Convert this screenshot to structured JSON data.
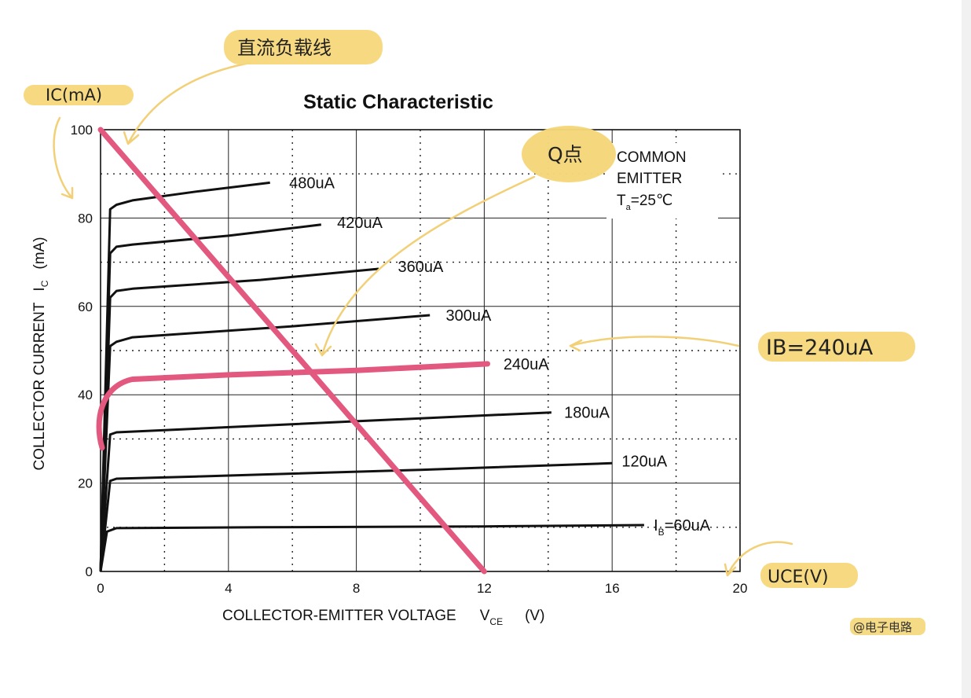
{
  "chart_data": {
    "type": "line",
    "title": "Static Characteristic",
    "ylabel_main": "COLLECTOR CURRENT",
    "ylabel_sym": "I",
    "ylabel_sub": "C",
    "ylabel_unit": "(mA)",
    "xlabel_main": "COLLECTOR-EMITTER VOLTAGE",
    "xlabel_sym": "V",
    "xlabel_sub": "CE",
    "xlabel_unit": "(V)",
    "x_ticks": [
      "0",
      "4",
      "8",
      "12",
      "16",
      "20"
    ],
    "y_ticks": [
      "0",
      "20",
      "40",
      "60",
      "80",
      "100"
    ],
    "xlim": [
      0,
      20
    ],
    "ylim": [
      0,
      100
    ],
    "grid": true,
    "info_line1": "COMMON",
    "info_line2": "EMITTER",
    "info_temp_sym": "T",
    "info_temp_sub": "a",
    "info_temp_val": "=25℃",
    "series": [
      {
        "name": "480uA",
        "label_x": 5.9,
        "label_y": 88,
        "points": [
          [
            0,
            0
          ],
          [
            0.3,
            82
          ],
          [
            0.5,
            83
          ],
          [
            1,
            84
          ],
          [
            3,
            86
          ],
          [
            5.3,
            88
          ]
        ]
      },
      {
        "name": "420uA",
        "label_x": 7.4,
        "label_y": 79,
        "points": [
          [
            0,
            0
          ],
          [
            0.3,
            72
          ],
          [
            0.5,
            73.5
          ],
          [
            1,
            74
          ],
          [
            4,
            76
          ],
          [
            6.9,
            78.5
          ]
        ]
      },
      {
        "name": "360uA",
        "label_x": 9.3,
        "label_y": 69,
        "points": [
          [
            0,
            0
          ],
          [
            0.3,
            62
          ],
          [
            0.5,
            63.5
          ],
          [
            1,
            64
          ],
          [
            5,
            66
          ],
          [
            8.7,
            68.5
          ]
        ]
      },
      {
        "name": "300uA",
        "label_x": 10.8,
        "label_y": 58,
        "points": [
          [
            0,
            0
          ],
          [
            0.3,
            51
          ],
          [
            0.5,
            52
          ],
          [
            1,
            53
          ],
          [
            6,
            55.5
          ],
          [
            10.3,
            58
          ]
        ]
      },
      {
        "name": "240uA",
        "label_x": 12.6,
        "label_y": 47,
        "points": [
          [
            0,
            0
          ],
          [
            0.3,
            40
          ],
          [
            0.5,
            41.5
          ],
          [
            1,
            43.5
          ],
          [
            4,
            44.5
          ],
          [
            8,
            45.5
          ],
          [
            12.1,
            47
          ]
        ]
      },
      {
        "name": "180uA",
        "label_x": 14.5,
        "label_y": 36,
        "points": [
          [
            0,
            0
          ],
          [
            0.3,
            31
          ],
          [
            0.5,
            31.5
          ],
          [
            2,
            32
          ],
          [
            8,
            34
          ],
          [
            14.1,
            36
          ]
        ]
      },
      {
        "name": "120uA",
        "label_x": 16.3,
        "label_y": 25,
        "points": [
          [
            0,
            0
          ],
          [
            0.3,
            20.5
          ],
          [
            0.5,
            21
          ],
          [
            3,
            21.5
          ],
          [
            10,
            23
          ],
          [
            16,
            24.5
          ]
        ]
      }
    ],
    "bottom_curve": {
      "name_main": "I",
      "name_sub": "B",
      "name_rest": "=60uA",
      "label_x": 17.3,
      "label_y": 10.5,
      "points": [
        [
          0,
          0
        ],
        [
          0.2,
          9
        ],
        [
          0.5,
          9.8
        ],
        [
          5,
          10
        ],
        [
          12,
          10.2
        ],
        [
          17,
          10.5
        ]
      ]
    },
    "load_line": {
      "points": [
        [
          0,
          100
        ],
        [
          12,
          0
        ]
      ]
    }
  },
  "annotations": {
    "dc_load_line": "直流负载线",
    "ic_ma": "IC(mA)",
    "q_point": "Q点",
    "ib_240": "IB=240uA",
    "uce_v": "UCE(V)",
    "watermark": "@电子电路"
  },
  "colors": {
    "highlight": "#f5d77a",
    "accent": "#e2587e",
    "curve": "#111111",
    "arrow": "#f2d078"
  }
}
